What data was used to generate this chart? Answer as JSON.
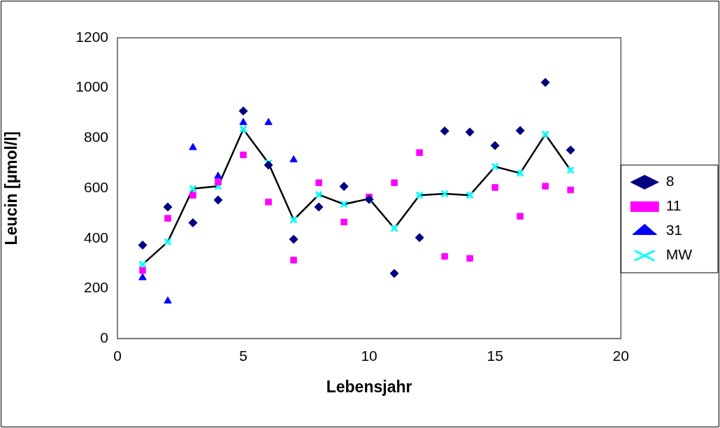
{
  "chart_data": {
    "type": "scatter",
    "xlabel": "Lebensjahr",
    "ylabel": "Leucin [µmol/l]",
    "x": [
      1,
      2,
      3,
      4,
      5,
      6,
      7,
      8,
      9,
      10,
      11,
      12,
      13,
      14,
      15,
      16,
      17,
      18
    ],
    "series": [
      {
        "name": "8",
        "color": "#000080",
        "marker": "diamond",
        "values": [
          373,
          525,
          462,
          553,
          908,
          692,
          396,
          525,
          607,
          555,
          260,
          403,
          828,
          824,
          770,
          830,
          1022,
          752
        ]
      },
      {
        "name": "11",
        "color": "#ff00ff",
        "marker": "square",
        "values": [
          272,
          480,
          572,
          625,
          733,
          545,
          313,
          622,
          465,
          565,
          622,
          742,
          328,
          320,
          603,
          488,
          608,
          593
        ]
      },
      {
        "name": "31",
        "color": "#0000ff",
        "marker": "triangle",
        "values": [
          243,
          150,
          762,
          648,
          862,
          862,
          713,
          null,
          null,
          null,
          null,
          null,
          null,
          null,
          null,
          null,
          null,
          null
        ]
      },
      {
        "name": "MW",
        "type": "line",
        "color": "#000000",
        "colors": [
          "#00ffff",
          "#00ffff",
          "#00ffff",
          "#00ffff",
          "#00ffff",
          "#00ffff",
          "#00ffff",
          "#00ffff",
          "#00ffff",
          "#00ffff",
          "#00ffff",
          "#00ffff",
          "#00ffff",
          "#00ffff",
          "#00ffff",
          "#00ffff",
          "#00ffff",
          "#00ffff"
        ],
        "marker": "cross",
        "values": [
          296,
          386,
          598,
          608,
          835,
          700,
          474,
          574,
          536,
          558,
          440,
          572,
          578,
          572,
          686,
          660,
          815,
          672
        ]
      }
    ],
    "xlim": [
      0,
      20
    ],
    "xticks": [
      0,
      5,
      10,
      15,
      20
    ],
    "ylim": [
      0,
      1200
    ],
    "yticks": [
      0,
      200,
      400,
      600,
      800,
      1000,
      1200
    ],
    "grid": false,
    "legend": "right"
  }
}
